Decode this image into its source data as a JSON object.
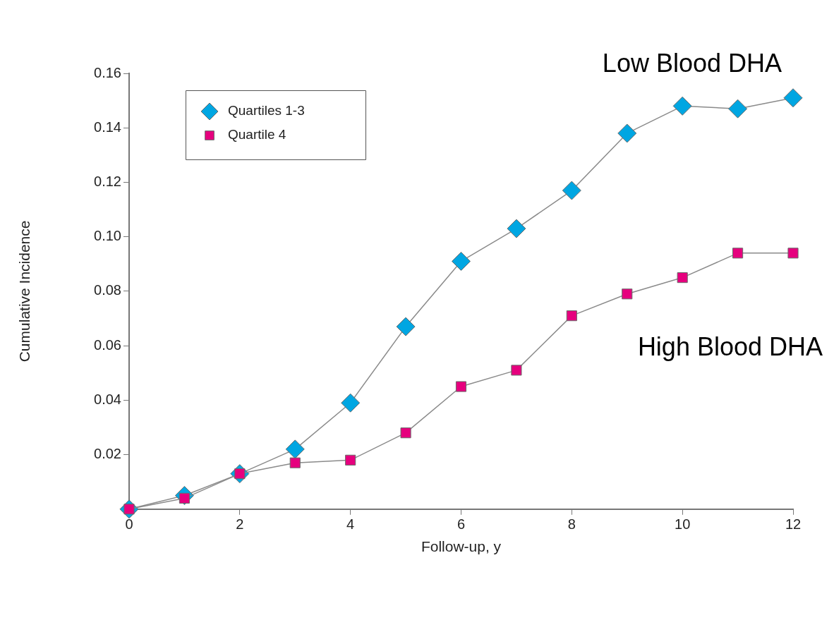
{
  "chart_data": {
    "type": "line",
    "xlabel": "Follow-up, y",
    "ylabel": "Cumulative Incidence",
    "x": [
      0,
      1,
      2,
      3,
      4,
      5,
      6,
      7,
      8,
      9,
      10,
      11,
      12
    ],
    "series": [
      {
        "name": "Quartiles 1-3",
        "color": "#00a6e2",
        "marker": "diamond",
        "values": [
          0,
          0.005,
          0.013,
          0.022,
          0.039,
          0.067,
          0.091,
          0.103,
          0.117,
          0.138,
          0.148,
          0.147,
          0.151
        ]
      },
      {
        "name": "Quartile 4",
        "color": "#e6007e",
        "marker": "square",
        "values": [
          0,
          0.004,
          0.013,
          0.017,
          0.018,
          0.028,
          0.045,
          0.051,
          0.071,
          0.079,
          0.085,
          0.094,
          0.094
        ]
      }
    ],
    "xlim": [
      0,
      12
    ],
    "xticks": [
      0,
      2,
      4,
      6,
      8,
      10,
      12
    ],
    "ylim": [
      0,
      0.16
    ],
    "yticks": [
      0.02,
      0.04,
      0.06,
      0.08,
      {
        "value": 0.1,
        "label": "0.10"
      },
      0.12,
      0.14,
      0.16
    ],
    "annotations": [
      "Low Blood DHA",
      "High Blood DHA"
    ],
    "legend": "top left",
    "grid": false,
    "line_style": "solid"
  }
}
